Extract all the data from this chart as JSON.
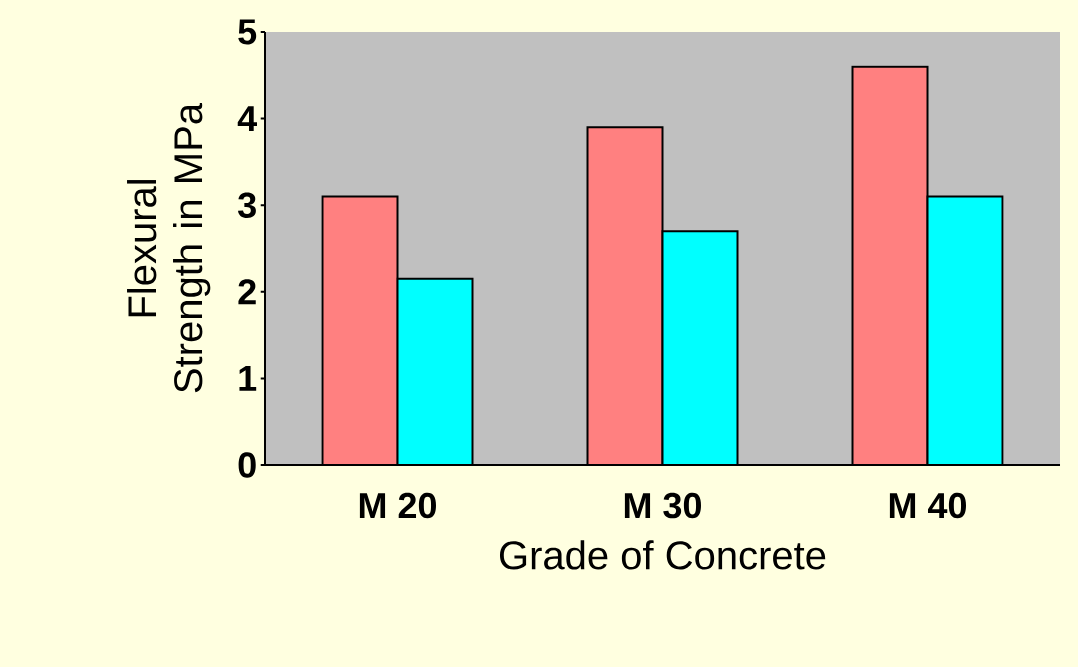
{
  "chart_data": {
    "type": "bar",
    "xlabel": "Grade of Concrete",
    "ylabel": "Flexural Strength in MPa",
    "categories": [
      "M 20",
      "M 30",
      "M 40"
    ],
    "series": [
      {
        "color": "#ff8080",
        "values": [
          3.1,
          3.9,
          4.6
        ]
      },
      {
        "color": "#00ffff",
        "values": [
          2.15,
          2.7,
          3.1
        ]
      }
    ],
    "ylim": [
      0,
      5
    ],
    "yticks": [
      0,
      1,
      2,
      3,
      4,
      5
    ],
    "grid": false
  }
}
